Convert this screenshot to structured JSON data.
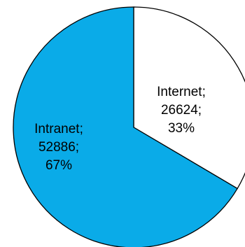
{
  "chart_data": {
    "type": "pie",
    "start_angle_deg": 0,
    "direction": "clockwise",
    "slices": [
      {
        "category": "Internet",
        "value": 26624,
        "percent": "33%",
        "color": "#ffffff",
        "label_lines": [
          "Internet;",
          "26624;",
          "33%"
        ]
      },
      {
        "category": "Intranet",
        "value": 52886,
        "percent": "67%",
        "color": "#0aabe8",
        "label_lines": [
          "Intranet;",
          "52886;",
          "67%"
        ]
      }
    ]
  }
}
